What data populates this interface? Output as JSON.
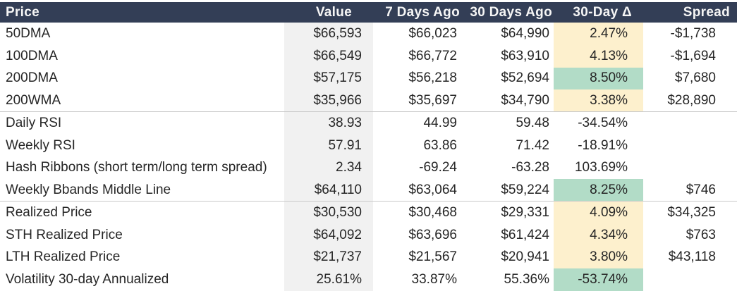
{
  "colors": {
    "header_bg": "#333e56",
    "header_text": "#f5f5f5",
    "value_col_bg": "#f1f1f1",
    "delta_yellow": "#fdf0cd",
    "delta_green": "#b2dcc7",
    "row_divider": "#c9c9c9",
    "body_text": "#262626",
    "page_bg": "#ffffff"
  },
  "chart_data": {
    "type": "table",
    "title": "",
    "columns": [
      "Price",
      "Value",
      "7 Days Ago",
      "30 Days Ago",
      "30-Day Δ",
      "Spread"
    ],
    "rows": [
      {
        "label": "50DMA",
        "value": "$66,593",
        "d7": "$66,023",
        "d30": "$64,990",
        "delta": "2.47%",
        "delta_highlight": "yellow",
        "spread": "-$1,738",
        "group_end": false
      },
      {
        "label": "100DMA",
        "value": "$66,549",
        "d7": "$66,772",
        "d30": "$63,910",
        "delta": "4.13%",
        "delta_highlight": "yellow",
        "spread": "-$1,694",
        "group_end": false
      },
      {
        "label": "200DMA",
        "value": "$57,175",
        "d7": "$56,218",
        "d30": "$52,694",
        "delta": "8.50%",
        "delta_highlight": "green",
        "spread": "$7,680",
        "group_end": false
      },
      {
        "label": "200WMA",
        "value": "$35,966",
        "d7": "$35,697",
        "d30": "$34,790",
        "delta": "3.38%",
        "delta_highlight": "yellow",
        "spread": "$28,890",
        "group_end": true
      },
      {
        "label": "Daily RSI",
        "value": "38.93",
        "d7": "44.99",
        "d30": "59.48",
        "delta": "-34.54%",
        "delta_highlight": "none",
        "spread": "",
        "group_end": false
      },
      {
        "label": "Weekly RSI",
        "value": "57.91",
        "d7": "63.86",
        "d30": "71.42",
        "delta": "-18.91%",
        "delta_highlight": "none",
        "spread": "",
        "group_end": false
      },
      {
        "label": "Hash Ribbons (short term/long term spread)",
        "value": "2.34",
        "d7": "-69.24",
        "d30": "-63.28",
        "delta": "103.69%",
        "delta_highlight": "none",
        "spread": "",
        "group_end": false
      },
      {
        "label": "Weekly Bbands Middle Line",
        "value": "$64,110",
        "d7": "$63,064",
        "d30": "$59,224",
        "delta": "8.25%",
        "delta_highlight": "green",
        "spread": "$746",
        "group_end": true
      },
      {
        "label": "Realized Price",
        "value": "$30,530",
        "d7": "$30,468",
        "d30": "$29,331",
        "delta": "4.09%",
        "delta_highlight": "yellow",
        "spread": "$34,325",
        "group_end": false
      },
      {
        "label": "STH Realized Price",
        "value": "$64,092",
        "d7": "$63,696",
        "d30": "$61,424",
        "delta": "4.34%",
        "delta_highlight": "yellow",
        "spread": "$763",
        "group_end": false
      },
      {
        "label": "LTH Realized Price",
        "value": "$21,737",
        "d7": "$21,567",
        "d30": "$20,941",
        "delta": "3.80%",
        "delta_highlight": "yellow",
        "spread": "$43,118",
        "group_end": false
      },
      {
        "label": "Volatility 30-day Annualized",
        "value": "25.61%",
        "d7": "33.87%",
        "d30": "55.36%",
        "delta": "-53.74%",
        "delta_highlight": "green",
        "spread": "",
        "group_end": false
      }
    ]
  }
}
